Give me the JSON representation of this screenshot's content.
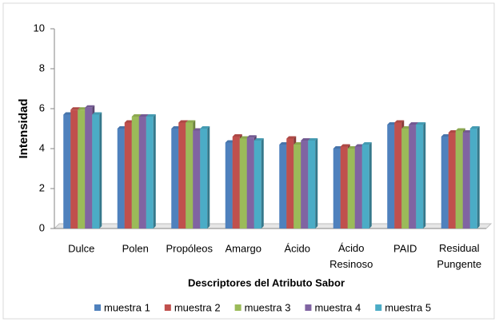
{
  "chart_data": {
    "type": "bar",
    "x_label": "Descriptores del Atributo Sabor",
    "y_label": "Intensidad",
    "categories": [
      "Dulce",
      "Polen",
      "Propóleos",
      "Amargo",
      "Ácido",
      "Ácido Resinoso",
      "PAID",
      "Residual Pungente"
    ],
    "series": [
      {
        "name": "muestra 1",
        "color": "#4F81BD",
        "values": [
          5.7,
          5.0,
          5.0,
          4.3,
          4.2,
          4.0,
          5.2,
          4.6
        ]
      },
      {
        "name": "muestra 2",
        "color": "#C0504D",
        "values": [
          5.95,
          5.3,
          5.3,
          4.6,
          4.5,
          4.1,
          5.3,
          4.8
        ]
      },
      {
        "name": "muestra 3",
        "color": "#9BBB59",
        "values": [
          5.95,
          5.6,
          5.3,
          4.5,
          4.2,
          4.0,
          5.0,
          4.9
        ]
      },
      {
        "name": "muestra 4",
        "color": "#8064A2",
        "values": [
          6.05,
          5.6,
          4.9,
          4.55,
          4.4,
          4.1,
          5.2,
          4.8
        ]
      },
      {
        "name": "muestra 5",
        "color": "#4BACC6",
        "values": [
          5.7,
          5.6,
          5.0,
          4.4,
          4.4,
          4.2,
          5.2,
          5.0
        ]
      }
    ],
    "ylim": [
      0,
      10
    ],
    "yticks": [
      0,
      2,
      4,
      6,
      8,
      10
    ],
    "legend": "bottom"
  }
}
